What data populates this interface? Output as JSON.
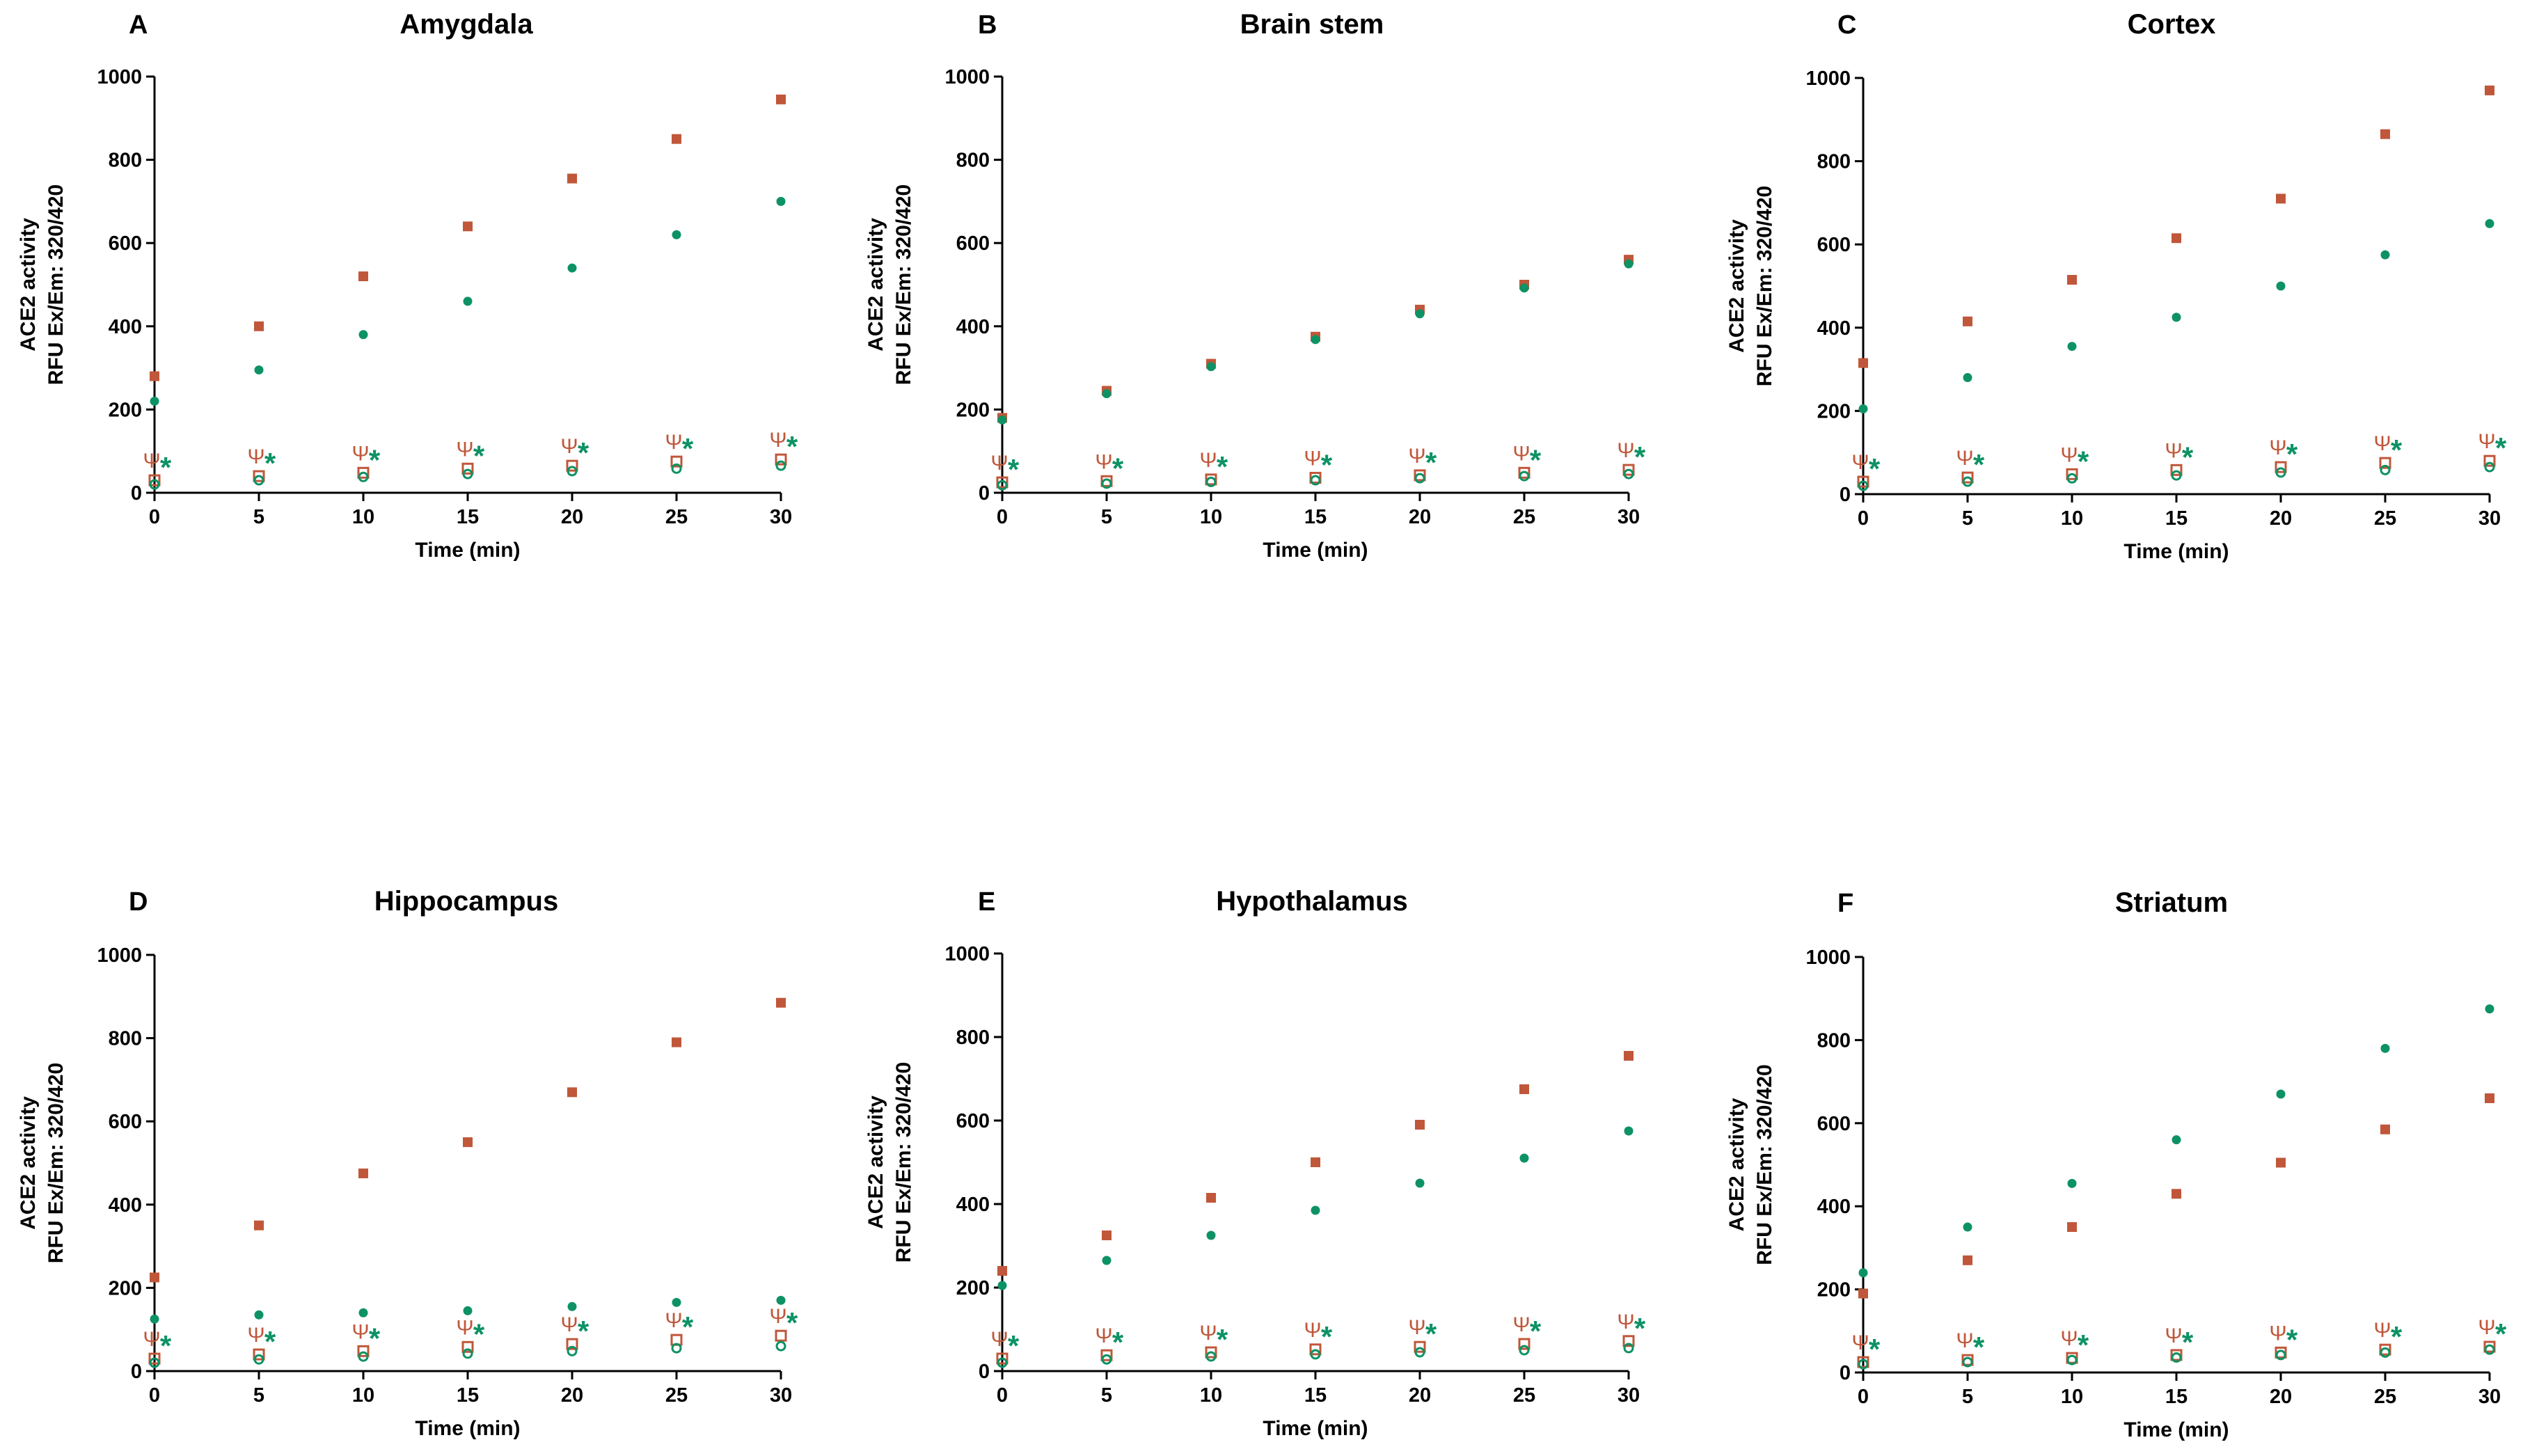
{
  "colors": {
    "series_a": "#c0573a",
    "series_b": "#0d9264",
    "axis": "#000000"
  },
  "chart_data": [
    {
      "type": "scatter",
      "panel": "A",
      "title": "Amygdala",
      "xlabel": "Time (min)",
      "ylabel": [
        "ACE2 activity",
        "RFU Ex/Em: 320/420"
      ],
      "xlim": [
        0,
        30
      ],
      "ylim": [
        0,
        1000
      ],
      "xticks": [
        "0",
        "5",
        "10",
        "15",
        "20",
        "25",
        "30"
      ],
      "yticks": [
        "0",
        "200",
        "400",
        "600",
        "800",
        "1000"
      ],
      "x": [
        0,
        5,
        10,
        15,
        20,
        25,
        30
      ],
      "series": [
        {
          "marker": "filled-square",
          "color": "#c0573a",
          "values": [
            280,
            400,
            520,
            640,
            755,
            850,
            945
          ]
        },
        {
          "marker": "filled-circle",
          "color": "#0d9264",
          "values": [
            220,
            295,
            380,
            460,
            540,
            620,
            700
          ]
        },
        {
          "marker": "open-square",
          "color": "#c0573a",
          "values": [
            30,
            40,
            48,
            58,
            65,
            75,
            80
          ]
        },
        {
          "marker": "open-circle",
          "color": "#0d9264",
          "values": [
            20,
            30,
            38,
            45,
            52,
            58,
            65
          ]
        }
      ],
      "annotations": {
        "psi": "Ψ",
        "star": "*"
      }
    },
    {
      "type": "scatter",
      "panel": "B",
      "title": "Brain stem",
      "xlabel": "Time (min)",
      "ylabel": [
        "ACE2 activity",
        "RFU Ex/Em: 320/420"
      ],
      "xlim": [
        0,
        30
      ],
      "ylim": [
        0,
        1000
      ],
      "xticks": [
        "0",
        "5",
        "10",
        "15",
        "20",
        "25",
        "30"
      ],
      "yticks": [
        "0",
        "200",
        "400",
        "600",
        "800",
        "1000"
      ],
      "x": [
        0,
        5,
        10,
        15,
        20,
        25,
        30
      ],
      "series": [
        {
          "marker": "filled-square",
          "color": "#c0573a",
          "values": [
            180,
            245,
            310,
            375,
            440,
            500,
            560
          ]
        },
        {
          "marker": "filled-circle",
          "color": "#0d9264",
          "values": [
            175,
            238,
            303,
            368,
            430,
            492,
            550
          ]
        },
        {
          "marker": "open-square",
          "color": "#c0573a",
          "values": [
            25,
            28,
            32,
            36,
            42,
            48,
            55
          ]
        },
        {
          "marker": "open-circle",
          "color": "#0d9264",
          "values": [
            18,
            22,
            26,
            30,
            35,
            40,
            45
          ]
        }
      ],
      "annotations": {
        "psi": "Ψ",
        "star": "*"
      }
    },
    {
      "type": "scatter",
      "panel": "C",
      "title": "Cortex",
      "xlabel": "Time (min)",
      "ylabel": [
        "ACE2 activity",
        "RFU Ex/Em: 320/420"
      ],
      "xlim": [
        0,
        30
      ],
      "ylim": [
        0,
        1000
      ],
      "xticks": [
        "0",
        "5",
        "10",
        "15",
        "20",
        "25",
        "30"
      ],
      "yticks": [
        "0",
        "200",
        "400",
        "600",
        "800",
        "1000"
      ],
      "x": [
        0,
        5,
        10,
        15,
        20,
        25,
        30
      ],
      "series": [
        {
          "marker": "filled-square",
          "color": "#c0573a",
          "values": [
            315,
            415,
            515,
            615,
            710,
            865,
            970
          ]
        },
        {
          "marker": "filled-circle",
          "color": "#0d9264",
          "values": [
            205,
            280,
            355,
            425,
            500,
            575,
            650
          ]
        },
        {
          "marker": "open-square",
          "color": "#c0573a",
          "values": [
            30,
            40,
            48,
            58,
            65,
            75,
            80
          ]
        },
        {
          "marker": "open-circle",
          "color": "#0d9264",
          "values": [
            20,
            30,
            38,
            45,
            52,
            58,
            65
          ]
        }
      ],
      "annotations": {
        "psi": "Ψ",
        "star": "*"
      }
    },
    {
      "type": "scatter",
      "panel": "D",
      "title": "Hippocampus",
      "xlabel": "Time (min)",
      "ylabel": [
        "ACE2 activity",
        "RFU Ex/Em: 320/420"
      ],
      "xlim": [
        0,
        30
      ],
      "ylim": [
        0,
        1000
      ],
      "xticks": [
        "0",
        "5",
        "10",
        "15",
        "20",
        "25",
        "30"
      ],
      "yticks": [
        "0",
        "200",
        "400",
        "600",
        "800",
        "1000"
      ],
      "x": [
        0,
        5,
        10,
        15,
        20,
        25,
        30
      ],
      "series": [
        {
          "marker": "filled-square",
          "color": "#c0573a",
          "values": [
            225,
            350,
            475,
            550,
            670,
            790,
            885
          ]
        },
        {
          "marker": "filled-circle",
          "color": "#0d9264",
          "values": [
            125,
            135,
            140,
            145,
            155,
            165,
            170
          ]
        },
        {
          "marker": "open-square",
          "color": "#c0573a",
          "values": [
            30,
            40,
            48,
            58,
            65,
            75,
            85
          ]
        },
        {
          "marker": "open-circle",
          "color": "#0d9264",
          "values": [
            20,
            28,
            35,
            42,
            48,
            55,
            60
          ]
        }
      ],
      "annotations": {
        "psi": "Ψ",
        "star": "*"
      }
    },
    {
      "type": "scatter",
      "panel": "E",
      "title": "Hypothalamus",
      "xlabel": "Time (min)",
      "ylabel": [
        "ACE2 activity",
        "RFU Ex/Em: 320/420"
      ],
      "xlim": [
        0,
        30
      ],
      "ylim": [
        0,
        1000
      ],
      "xticks": [
        "0",
        "5",
        "10",
        "15",
        "20",
        "25",
        "30"
      ],
      "yticks": [
        "0",
        "200",
        "400",
        "600",
        "800",
        "1000"
      ],
      "x": [
        0,
        5,
        10,
        15,
        20,
        25,
        30
      ],
      "series": [
        {
          "marker": "filled-square",
          "color": "#c0573a",
          "values": [
            240,
            325,
            415,
            500,
            590,
            675,
            755
          ]
        },
        {
          "marker": "filled-circle",
          "color": "#0d9264",
          "values": [
            205,
            265,
            325,
            385,
            450,
            510,
            575
          ]
        },
        {
          "marker": "open-square",
          "color": "#c0573a",
          "values": [
            30,
            38,
            45,
            52,
            58,
            65,
            72
          ]
        },
        {
          "marker": "open-circle",
          "color": "#0d9264",
          "values": [
            20,
            28,
            35,
            40,
            45,
            50,
            55
          ]
        }
      ],
      "annotations": {
        "psi": "Ψ",
        "star": "*"
      }
    },
    {
      "type": "scatter",
      "panel": "F",
      "title": "Striatum",
      "xlabel": "Time (min)",
      "ylabel": [
        "ACE2 activity",
        "RFU Ex/Em: 320/420"
      ],
      "xlim": [
        0,
        30
      ],
      "ylim": [
        0,
        1000
      ],
      "xticks": [
        "0",
        "5",
        "10",
        "15",
        "20",
        "25",
        "30"
      ],
      "yticks": [
        "0",
        "200",
        "400",
        "600",
        "800",
        "1000"
      ],
      "x": [
        0,
        5,
        10,
        15,
        20,
        25,
        30
      ],
      "series": [
        {
          "marker": "filled-square",
          "color": "#c0573a",
          "values": [
            190,
            270,
            350,
            430,
            505,
            585,
            660
          ]
        },
        {
          "marker": "filled-circle",
          "color": "#0d9264",
          "values": [
            240,
            350,
            455,
            560,
            670,
            780,
            875
          ]
        },
        {
          "marker": "open-square",
          "color": "#c0573a",
          "values": [
            25,
            30,
            35,
            42,
            48,
            55,
            62
          ]
        },
        {
          "marker": "open-circle",
          "color": "#0d9264",
          "values": [
            20,
            25,
            30,
            36,
            42,
            48,
            55
          ]
        }
      ],
      "annotations": {
        "psi": "Ψ",
        "star": "*"
      }
    }
  ]
}
